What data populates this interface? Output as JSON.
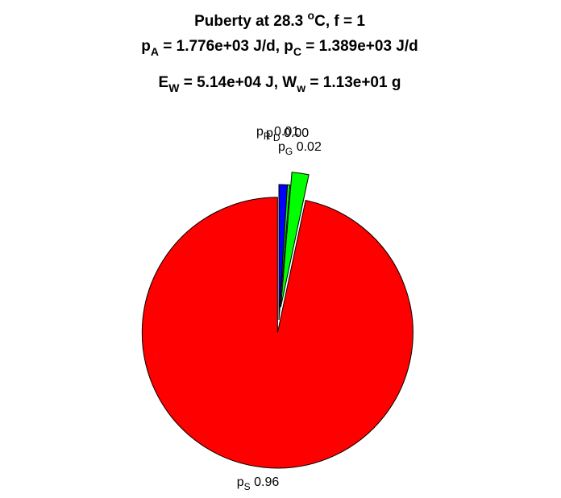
{
  "chart_data": {
    "type": "pie",
    "title": {
      "line1": {
        "prefix": "Puberty at 28.3 ",
        "sup": "o",
        "suffix": "C, f = 1"
      },
      "line2": [
        {
          "base": "p",
          "sub": "A",
          "rest": " = 1.776e+03 J/d,  "
        },
        {
          "base": "p",
          "sub": "C",
          "rest": " = 1.389e+03 J/d"
        }
      ],
      "line3": [
        {
          "base": "E",
          "sub": "W",
          "rest": " = 5.14e+04 J, "
        },
        {
          "base": "W",
          "sub": "w",
          "rest": " = 1.13e+01 g"
        }
      ]
    },
    "slices": [
      {
        "name": "p_R",
        "base": "p",
        "sub": "R",
        "value_label": "0.01",
        "value": 0.01,
        "color": "#0000ff",
        "exploded": false
      },
      {
        "name": "p_D",
        "base": "p",
        "sub": "D",
        "value_label": "0.00",
        "value": 0.003,
        "color": "#00ff00",
        "exploded": false
      },
      {
        "name": "p_G",
        "base": "p",
        "sub": "G",
        "value_label": "0.02",
        "value": 0.02,
        "color": "#00ff00",
        "exploded": true
      },
      {
        "name": "p_S",
        "base": "p",
        "sub": "S",
        "value_label": "0.96",
        "value": 0.96,
        "color": "#ff0000",
        "exploded": true
      }
    ],
    "start_angle_deg": 90,
    "direction": "clockwise"
  }
}
